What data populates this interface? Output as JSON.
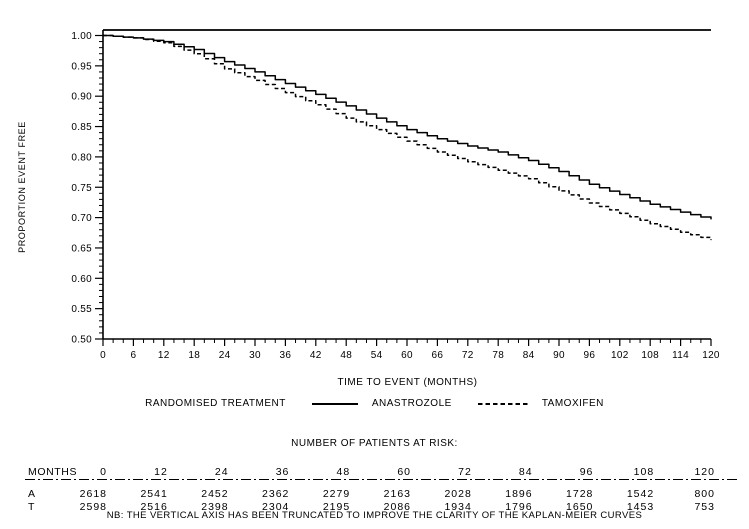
{
  "page": {
    "background": "#ffffff",
    "ink": "#000000"
  },
  "chart_data": {
    "type": "line",
    "subtype": "kaplan-meier-step",
    "title": "",
    "ylabel": "PROPORTION EVENT FREE",
    "xlabel": "TIME TO EVENT (MONTHS)",
    "legend_title": "RANDOMISED TREATMENT",
    "xlim": [
      0,
      120
    ],
    "ylim": [
      0.5,
      1.0
    ],
    "grid": false,
    "x_major_ticks": [
      0,
      6,
      12,
      18,
      24,
      30,
      36,
      42,
      48,
      54,
      60,
      66,
      72,
      78,
      84,
      90,
      96,
      102,
      108,
      114,
      120
    ],
    "x_minor_step": 2,
    "y_major_ticks": [
      1.0,
      0.95,
      0.9,
      0.85,
      0.8,
      0.75,
      0.7,
      0.65,
      0.6,
      0.55,
      0.5
    ],
    "y_minor_step": 0.01,
    "series": [
      {
        "name": "ANASTROZOLE",
        "style": "solid",
        "x": [
          0,
          6,
          12,
          18,
          24,
          30,
          36,
          42,
          48,
          54,
          60,
          66,
          72,
          78,
          84,
          90,
          96,
          102,
          108,
          114,
          120
        ],
        "y": [
          1.0,
          0.996,
          0.99,
          0.977,
          0.957,
          0.94,
          0.921,
          0.903,
          0.884,
          0.864,
          0.845,
          0.83,
          0.818,
          0.808,
          0.794,
          0.776,
          0.755,
          0.738,
          0.722,
          0.709,
          0.697
        ]
      },
      {
        "name": "TAMOXIFEN",
        "style": "dashed",
        "x": [
          0,
          6,
          12,
          18,
          24,
          30,
          36,
          42,
          48,
          54,
          60,
          66,
          72,
          78,
          84,
          90,
          96,
          102,
          108,
          114,
          120
        ],
        "y": [
          1.0,
          0.996,
          0.988,
          0.97,
          0.945,
          0.926,
          0.906,
          0.886,
          0.864,
          0.845,
          0.826,
          0.808,
          0.792,
          0.778,
          0.764,
          0.744,
          0.724,
          0.707,
          0.69,
          0.676,
          0.663
        ]
      }
    ],
    "note": "NB: THE VERTICAL AXIS HAS BEEN TRUNCATED TO IMPROVE THE CLARITY OF THE KAPLAN-MEIER CURVES"
  },
  "risk_table": {
    "title": "NUMBER OF PATIENTS AT RISK:",
    "months_label": "MONTHS",
    "months": [
      0,
      12,
      24,
      36,
      48,
      60,
      72,
      84,
      96,
      108,
      120
    ],
    "rows": [
      {
        "label": "A",
        "values": [
          2618,
          2541,
          2452,
          2362,
          2279,
          2163,
          2028,
          1896,
          1728,
          1542,
          800
        ]
      },
      {
        "label": "T",
        "values": [
          2598,
          2516,
          2398,
          2304,
          2195,
          2086,
          1934,
          1796,
          1650,
          1453,
          753
        ]
      }
    ]
  }
}
